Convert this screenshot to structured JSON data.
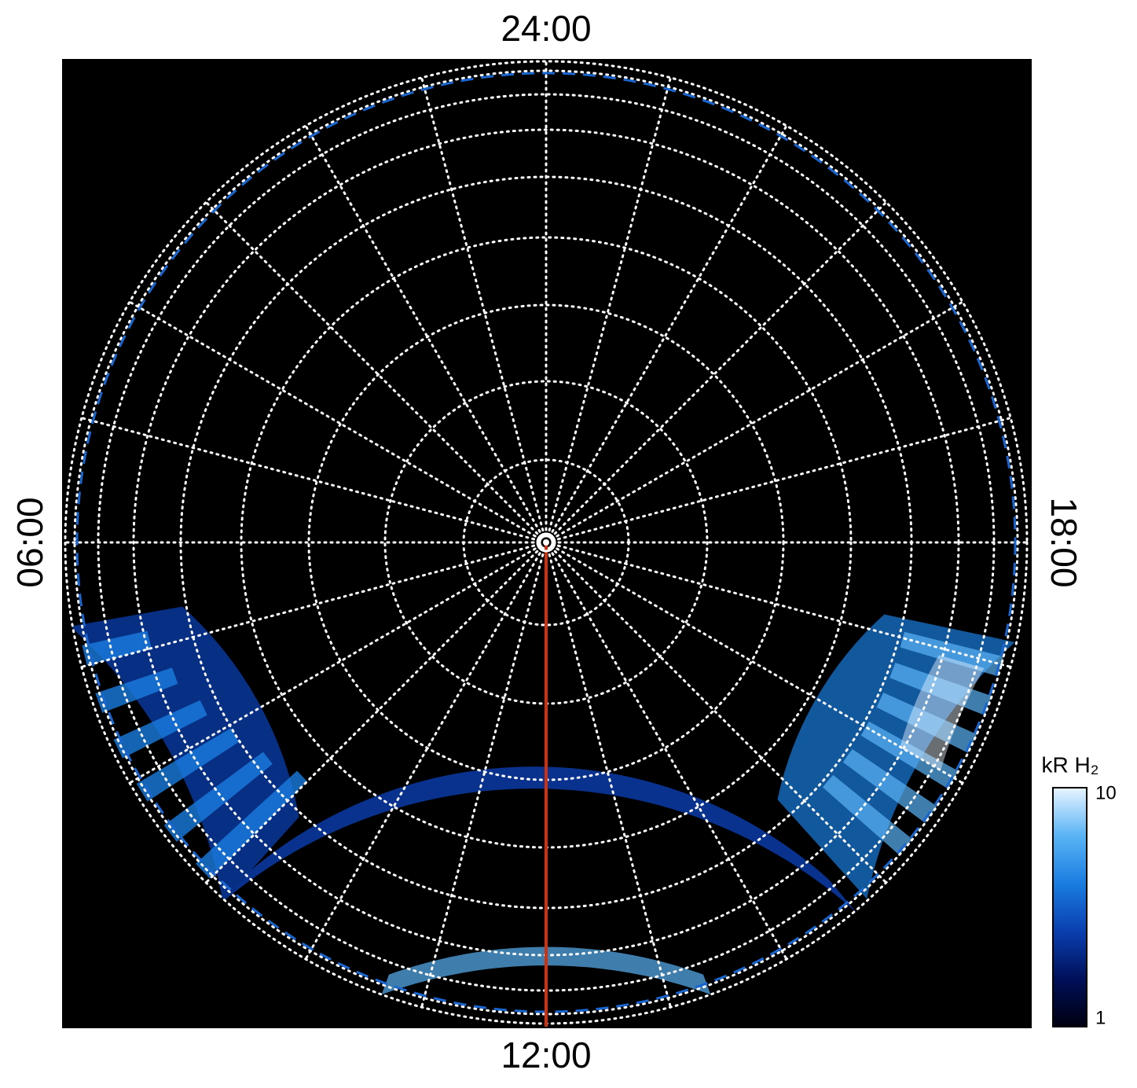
{
  "chart_data": {
    "type": "polar-image",
    "labels": {
      "top": "24:00",
      "left": "06:00",
      "right": "18:00",
      "bottom": "12:00"
    },
    "colorbar": {
      "title": "kR H₂",
      "lim": [
        1,
        10
      ],
      "ticks": [
        1,
        10
      ],
      "log": true,
      "colors": [
        "#000010",
        "#00105a",
        "#0a3fb0",
        "#1a7de0",
        "#5ab4f5",
        "#e8f4ff"
      ]
    }
  }
}
